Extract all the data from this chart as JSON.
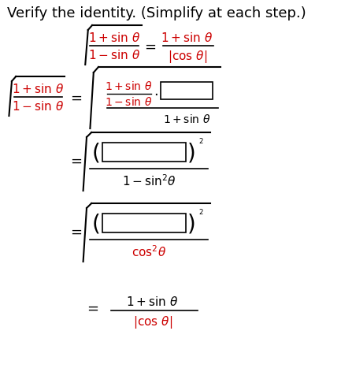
{
  "title": "Verify the identity. (Simplify at each step.)",
  "bg_color": "#ffffff",
  "text_color_black": "#000000",
  "text_color_red": "#cc0000",
  "box_color": "#ffffff",
  "box_edge_color": "#000000",
  "font_size_title": 13,
  "font_size_math": 12
}
